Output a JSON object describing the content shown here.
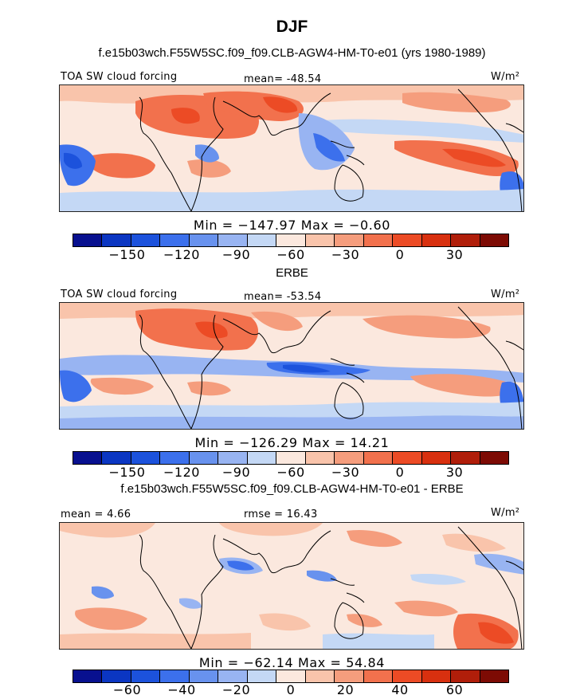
{
  "title": "DJF",
  "panels": [
    {
      "heading": "f.e15b03wch.F55W5SC.f09_f09.CLB-AGW4-HM-T0-e01 (yrs 1980-1989)",
      "left_label": "TOA SW cloud forcing",
      "center_label": "mean= -48.54",
      "units": "W/m²",
      "stats": "Min = −147.97 Max =  −0.60",
      "colorbar": {
        "colors": [
          "#08108f",
          "#0b36c2",
          "#1c52dc",
          "#3c70ec",
          "#6892ee",
          "#98b4f2",
          "#c4d8f5",
          "#fbe8de",
          "#f9c4ab",
          "#f59d7d",
          "#f2714d",
          "#ec4b25",
          "#d8300f",
          "#b01e0a",
          "#7d0b04"
        ],
        "tick_labels": [
          "−150",
          "−120",
          "−90",
          "−60",
          "−30",
          "0",
          "30"
        ],
        "tick_positions": [
          2,
          4,
          6,
          8,
          10,
          12,
          14
        ],
        "segments": 16
      }
    },
    {
      "heading": "ERBE",
      "left_label": "TOA SW cloud forcing",
      "center_label": "mean= -53.54",
      "units": "W/m²",
      "stats": "Min = −126.29 Max =  14.21",
      "colorbar": {
        "colors": [
          "#08108f",
          "#0b36c2",
          "#1c52dc",
          "#3c70ec",
          "#6892ee",
          "#98b4f2",
          "#c4d8f5",
          "#fbe8de",
          "#f9c4ab",
          "#f59d7d",
          "#f2714d",
          "#ec4b25",
          "#d8300f",
          "#b01e0a",
          "#7d0b04"
        ],
        "tick_labels": [
          "−150",
          "−120",
          "−90",
          "−60",
          "−30",
          "0",
          "30"
        ],
        "tick_positions": [
          2,
          4,
          6,
          8,
          10,
          12,
          14
        ],
        "segments": 16
      }
    },
    {
      "heading": "f.e15b03wch.F55W5SC.f09_f09.CLB-AGW4-HM-T0-e01 - ERBE",
      "left_label": "mean =   4.66",
      "center_label": "rmse =  16.43",
      "units": "W/m²",
      "stats": "Min = −62.14 Max =  54.84",
      "colorbar": {
        "colors": [
          "#08108f",
          "#0b36c2",
          "#1c52dc",
          "#3c70ec",
          "#6892ee",
          "#98b4f2",
          "#c4d8f5",
          "#fbe8de",
          "#f9c4ab",
          "#f59d7d",
          "#f2714d",
          "#ec4b25",
          "#d8300f",
          "#b01e0a",
          "#7d0b04"
        ],
        "tick_labels": [
          "−60",
          "−40",
          "−20",
          "0",
          "20",
          "40",
          "60"
        ],
        "tick_positions": [
          2,
          4,
          6,
          8,
          10,
          12,
          14
        ],
        "segments": 16
      }
    }
  ]
}
